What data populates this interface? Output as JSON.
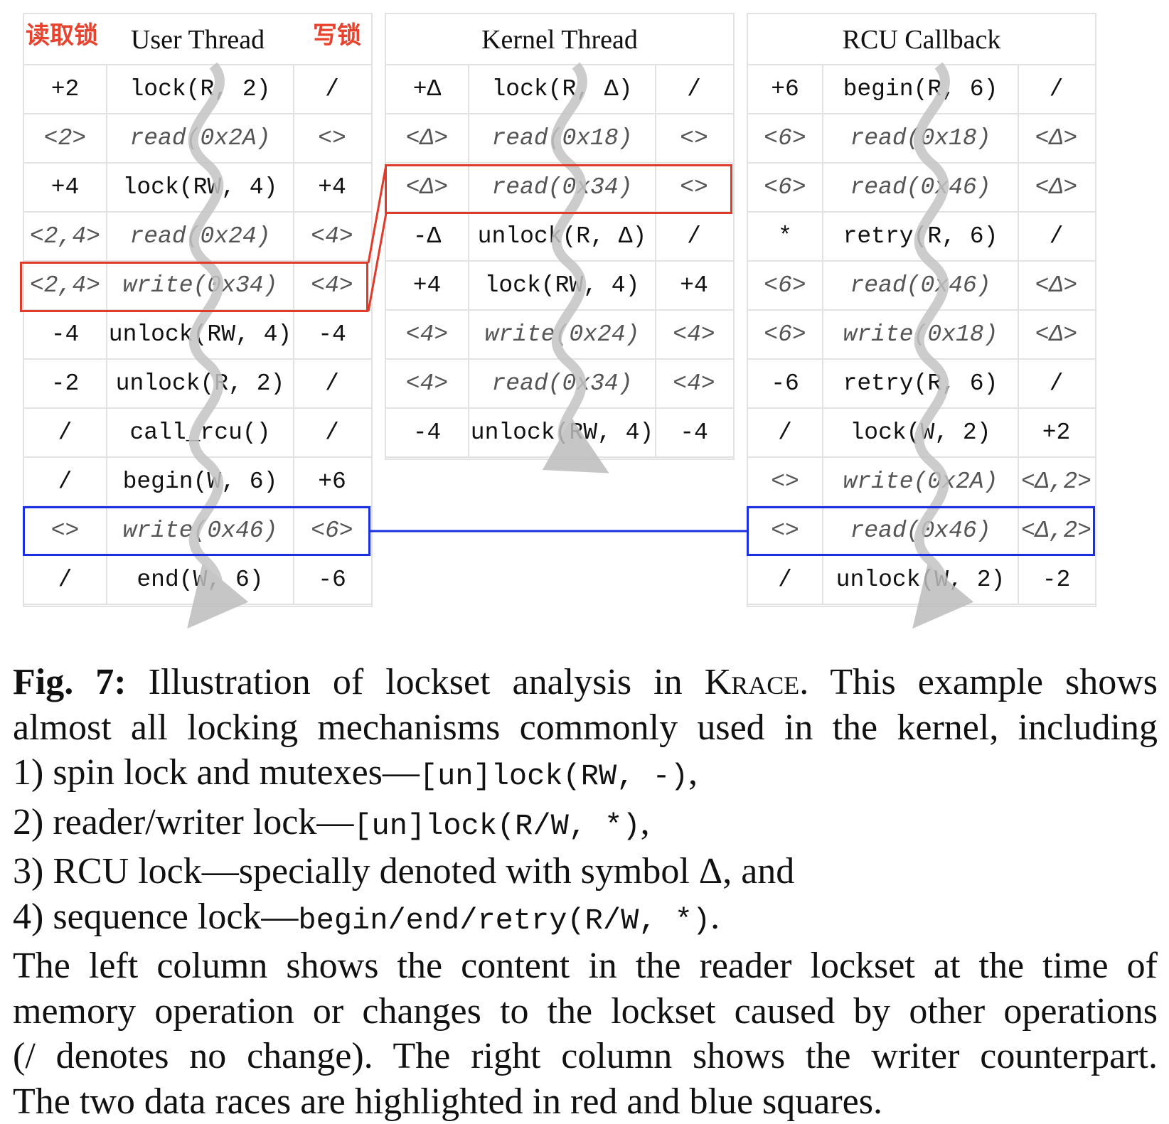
{
  "tags": {
    "read_lock": "读取锁",
    "write_lock": "写锁"
  },
  "panels": {
    "user": {
      "title": "User Thread",
      "rows": [
        {
          "r": "+2",
          "op": "lock(R, 2)",
          "w": "/",
          "mem": false
        },
        {
          "r": "<2>",
          "op": "read(0x2A)",
          "w": "<>",
          "mem": true
        },
        {
          "r": "+4",
          "op": "lock(RW, 4)",
          "w": "+4",
          "mem": false
        },
        {
          "r": "<2,4>",
          "op": "read(0x24)",
          "w": "<4>",
          "mem": true
        },
        {
          "r": "<2,4>",
          "op": "write(0x34)",
          "w": "<4>",
          "mem": true
        },
        {
          "r": "-4",
          "op": "unlock(RW, 4)",
          "w": "-4",
          "mem": false
        },
        {
          "r": "-2",
          "op": "unlock(R, 2)",
          "w": "/",
          "mem": false
        },
        {
          "r": "/",
          "op": "call_rcu()",
          "w": "/",
          "mem": false
        },
        {
          "r": "/",
          "op": "begin(W, 6)",
          "w": "+6",
          "mem": false
        },
        {
          "r": "<>",
          "op": "write(0x46)",
          "w": "<6>",
          "mem": true
        },
        {
          "r": "/",
          "op": "end(W, 6)",
          "w": "-6",
          "mem": false
        }
      ]
    },
    "kernel": {
      "title": "Kernel Thread",
      "rows": [
        {
          "r": "+Δ",
          "op": "lock(R, Δ)",
          "w": "/",
          "mem": false
        },
        {
          "r": "<Δ>",
          "op": "read(0x18)",
          "w": "<>",
          "mem": true
        },
        {
          "r": "<Δ>",
          "op": "read(0x34)",
          "w": "<>",
          "mem": true
        },
        {
          "r": "-Δ",
          "op": "unlock(R, Δ)",
          "w": "/",
          "mem": false
        },
        {
          "r": "+4",
          "op": "lock(RW, 4)",
          "w": "+4",
          "mem": false
        },
        {
          "r": "<4>",
          "op": "write(0x24)",
          "w": "<4>",
          "mem": true
        },
        {
          "r": "<4>",
          "op": "read(0x34)",
          "w": "<4>",
          "mem": true
        },
        {
          "r": "-4",
          "op": "unlock(RW, 4)",
          "w": "-4",
          "mem": false
        }
      ]
    },
    "rcu": {
      "title": "RCU Callback",
      "rows": [
        {
          "r": "+6",
          "op": "begin(R, 6)",
          "w": "/",
          "mem": false
        },
        {
          "r": "<6>",
          "op": "read(0x18)",
          "w": "<Δ>",
          "mem": true
        },
        {
          "r": "<6>",
          "op": "read(0x46)",
          "w": "<Δ>",
          "mem": true
        },
        {
          "r": "*",
          "op": "retry(R, 6)",
          "w": "/",
          "mem": false
        },
        {
          "r": "<6>",
          "op": "read(0x46)",
          "w": "<Δ>",
          "mem": true
        },
        {
          "r": "<6>",
          "op": "write(0x18)",
          "w": "<Δ>",
          "mem": true
        },
        {
          "r": "-6",
          "op": "retry(R, 6)",
          "w": "/",
          "mem": false
        },
        {
          "r": "/",
          "op": "lock(W, 2)",
          "w": "+2",
          "mem": false
        },
        {
          "r": "<>",
          "op": "write(0x2A)",
          "w": "<Δ,2>",
          "mem": true
        },
        {
          "r": "<>",
          "op": "read(0x46)",
          "w": "<Δ,2>",
          "mem": true
        },
        {
          "r": "/",
          "op": "unlock(W, 2)",
          "w": "-2",
          "mem": false
        }
      ]
    }
  },
  "caption": {
    "fig_label": "Fig. 7:",
    "l1_text": "Illustration of lockset analysis in",
    "krace": "Krace",
    "l1_rest": ". This example shows",
    "l2": "almost all locking mechanisms commonly used in the kernel, including",
    "l3_text": "1) spin lock and mutexes—",
    "l3_code": "[un]lock(RW, -)",
    "l3_end": ",",
    "l4_text": "2) reader/writer lock—",
    "l4_code": "[un]lock(R/W, *)",
    "l4_end": ",",
    "l5": "3) RCU lock—specially denoted with symbol Δ, and",
    "l6_text": "4) sequence lock—",
    "l6_code": "begin/end/retry(R/W, *)",
    "l6_end": ".",
    "l7": "The left column shows the content in the reader lockset at the time of",
    "l8": "memory operation or changes to the lockset caused by other operations",
    "l9": "(/ denotes no change). The right column shows the writer counterpart.",
    "l10": "The two data races are highlighted in red and blue squares."
  }
}
